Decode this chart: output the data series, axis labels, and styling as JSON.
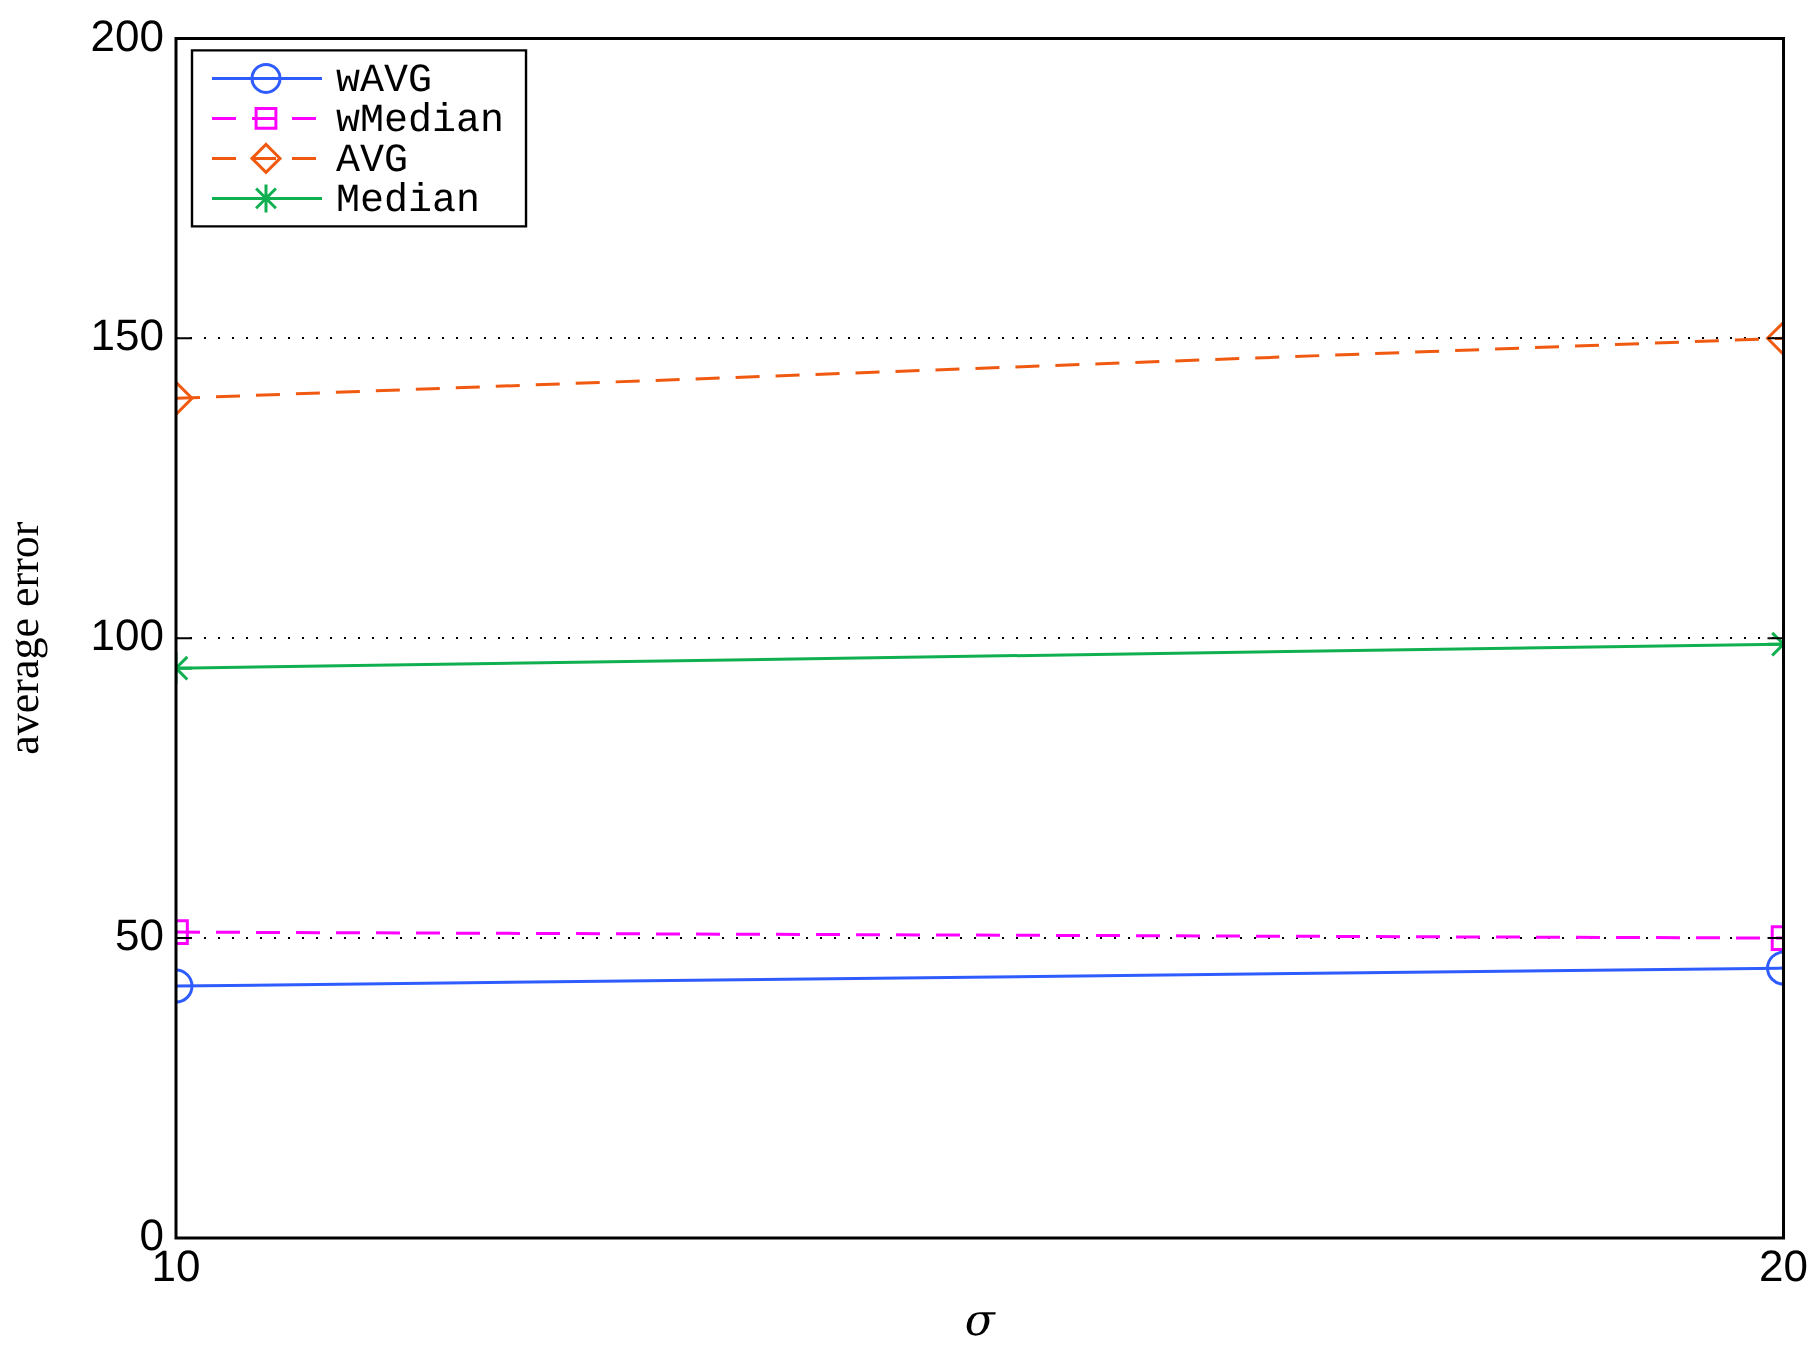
{
  "chart_data": {
    "type": "line",
    "xlabel": "σ",
    "ylabel": "average error",
    "x": [
      10,
      20
    ],
    "xlim": [
      10,
      20
    ],
    "xticks": [
      10,
      20
    ],
    "ylim": [
      0,
      200
    ],
    "yticks": [
      0,
      50,
      100,
      150,
      200
    ],
    "grid": "y",
    "legend": "top left",
    "series": [
      {
        "name": "wAVG",
        "color": "#2f5cff",
        "values": [
          42,
          45
        ],
        "marker": "circle",
        "line_style": "solid"
      },
      {
        "name": "wMedian",
        "color": "#ff00ff",
        "values": [
          51,
          50
        ],
        "marker": "square",
        "line_style": "dashed"
      },
      {
        "name": "AVG",
        "color": "#f05a10",
        "values": [
          140,
          150
        ],
        "marker": "diamond",
        "line_style": "dashed"
      },
      {
        "name": "Median",
        "color": "#10b050",
        "values": [
          95,
          99
        ],
        "marker": "cross",
        "line_style": "solid"
      }
    ]
  }
}
